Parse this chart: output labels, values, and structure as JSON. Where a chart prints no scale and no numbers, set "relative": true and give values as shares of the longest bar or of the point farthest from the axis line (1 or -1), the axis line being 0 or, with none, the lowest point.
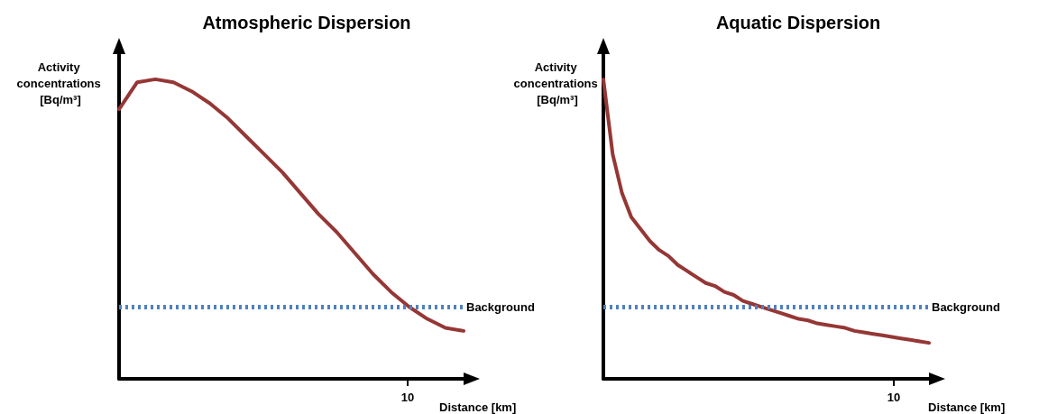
{
  "chart_data": [
    {
      "type": "line",
      "title": "Atmospheric Dispersion",
      "xlabel": "Distance [km]",
      "ylabel": "Activity concentrations [Bq/m³]",
      "relative": true,
      "annotations": [
        "10"
      ],
      "categories": [
        null,
        null,
        null,
        null,
        null,
        null,
        null,
        null,
        null,
        null,
        null,
        null,
        null,
        null,
        null,
        null,
        null,
        null,
        null,
        null
      ],
      "series": [
        {
          "color": "#953735",
          "values": [
            0.9,
            0.99,
            1.0,
            0.99,
            0.96,
            0.92,
            0.87,
            0.81,
            0.75,
            0.69,
            0.62,
            0.55,
            0.49,
            0.42,
            0.35,
            0.29,
            0.24,
            0.2,
            0.17,
            0.16
          ]
        }
      ],
      "ref_lines": [
        {
          "axis": "y",
          "value": 0.24,
          "label": "Background",
          "color": "#4f81bd",
          "line_style": "dotted"
        }
      ]
    },
    {
      "type": "line",
      "title": "Aquatic Dispersion",
      "xlabel": "Distance [km]",
      "ylabel": "Activity concentrations [Bq/m³]",
      "relative": true,
      "annotations": [
        "10"
      ],
      "categories": [
        null,
        null,
        null,
        null,
        null,
        null,
        null,
        null,
        null,
        null,
        null,
        null,
        null,
        null,
        null,
        null,
        null,
        null,
        null,
        null,
        null,
        null,
        null,
        null,
        null,
        null,
        null,
        null,
        null,
        null,
        null,
        null,
        null,
        null,
        null,
        null
      ],
      "series": [
        {
          "color": "#953735",
          "values": [
            1.0,
            0.75,
            0.62,
            0.54,
            0.5,
            0.46,
            0.43,
            0.41,
            0.38,
            0.36,
            0.34,
            0.32,
            0.31,
            0.29,
            0.28,
            0.26,
            0.25,
            0.24,
            0.23,
            0.22,
            0.21,
            0.2,
            0.195,
            0.185,
            0.18,
            0.175,
            0.17,
            0.16,
            0.155,
            0.15,
            0.145,
            0.14,
            0.135,
            0.13,
            0.125,
            0.12
          ]
        }
      ],
      "ref_lines": [
        {
          "axis": "y",
          "value": 0.24,
          "label": "Background",
          "color": "#4f81bd",
          "line_style": "dotted"
        }
      ]
    }
  ]
}
